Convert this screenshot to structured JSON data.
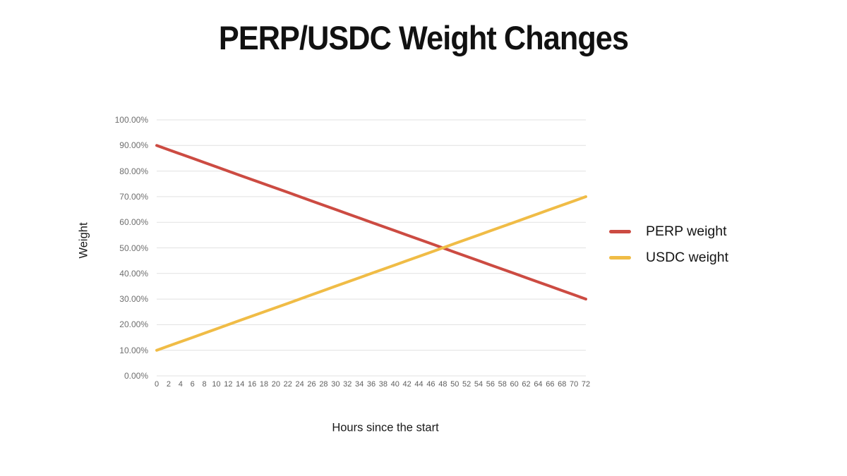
{
  "title": "PERP/USDC Weight Changes",
  "colors": {
    "perp": "#CC4B42",
    "usdc": "#F0BC46",
    "grid": "#E1E1E1",
    "tick_text": "#6E6E6E",
    "text": "#1A1A1A"
  },
  "y_axis": {
    "label": "Weight",
    "ticks": [
      "100.00%",
      "90.00%",
      "80.00%",
      "70.00%",
      "60.00%",
      "50.00%",
      "40.00%",
      "30.00%",
      "20.00%",
      "10.00%",
      "0.00%"
    ]
  },
  "x_axis": {
    "label": "Hours since the start",
    "ticks": [
      "0",
      "2",
      "4",
      "6",
      "8",
      "10",
      "12",
      "14",
      "16",
      "18",
      "20",
      "22",
      "24",
      "26",
      "28",
      "30",
      "32",
      "34",
      "36",
      "38",
      "40",
      "42",
      "44",
      "46",
      "48",
      "50",
      "52",
      "54",
      "56",
      "58",
      "60",
      "62",
      "64",
      "66",
      "68",
      "70",
      "72"
    ]
  },
  "legend": [
    {
      "label": "PERP weight",
      "color": "#CC4B42"
    },
    {
      "label": "USDC weight",
      "color": "#F0BC46"
    }
  ],
  "chart_data": {
    "type": "line",
    "title": "PERP/USDC Weight Changes",
    "xlabel": "Hours since the start",
    "ylabel": "Weight",
    "ylim": [
      0,
      100
    ],
    "xlim": [
      0,
      72
    ],
    "grid": "horizontal",
    "legend_position": "right",
    "x": [
      0,
      2,
      4,
      6,
      8,
      10,
      12,
      14,
      16,
      18,
      20,
      22,
      24,
      26,
      28,
      30,
      32,
      34,
      36,
      38,
      40,
      42,
      44,
      46,
      48,
      50,
      52,
      54,
      56,
      58,
      60,
      62,
      64,
      66,
      68,
      70,
      72
    ],
    "series": [
      {
        "name": "PERP weight",
        "color": "#CC4B42",
        "values": [
          90,
          88.33,
          86.67,
          85,
          83.33,
          81.67,
          80,
          78.33,
          76.67,
          75,
          73.33,
          71.67,
          70,
          68.33,
          66.67,
          65,
          63.33,
          61.67,
          60,
          58.33,
          56.67,
          55,
          53.33,
          51.67,
          50,
          48.33,
          46.67,
          45,
          43.33,
          41.67,
          40,
          38.33,
          36.67,
          35,
          33.33,
          31.67,
          30
        ]
      },
      {
        "name": "USDC weight",
        "color": "#F0BC46",
        "values": [
          10,
          11.67,
          13.33,
          15,
          16.67,
          18.33,
          20,
          21.67,
          23.33,
          25,
          26.67,
          28.33,
          30,
          31.67,
          33.33,
          35,
          36.67,
          38.33,
          40,
          41.67,
          43.33,
          45,
          46.67,
          48.33,
          50,
          51.67,
          53.33,
          55,
          56.67,
          58.33,
          60,
          61.67,
          63.33,
          65,
          66.67,
          68.33,
          70
        ]
      }
    ],
    "crossover_point": {
      "x": 48,
      "y": 50
    }
  }
}
